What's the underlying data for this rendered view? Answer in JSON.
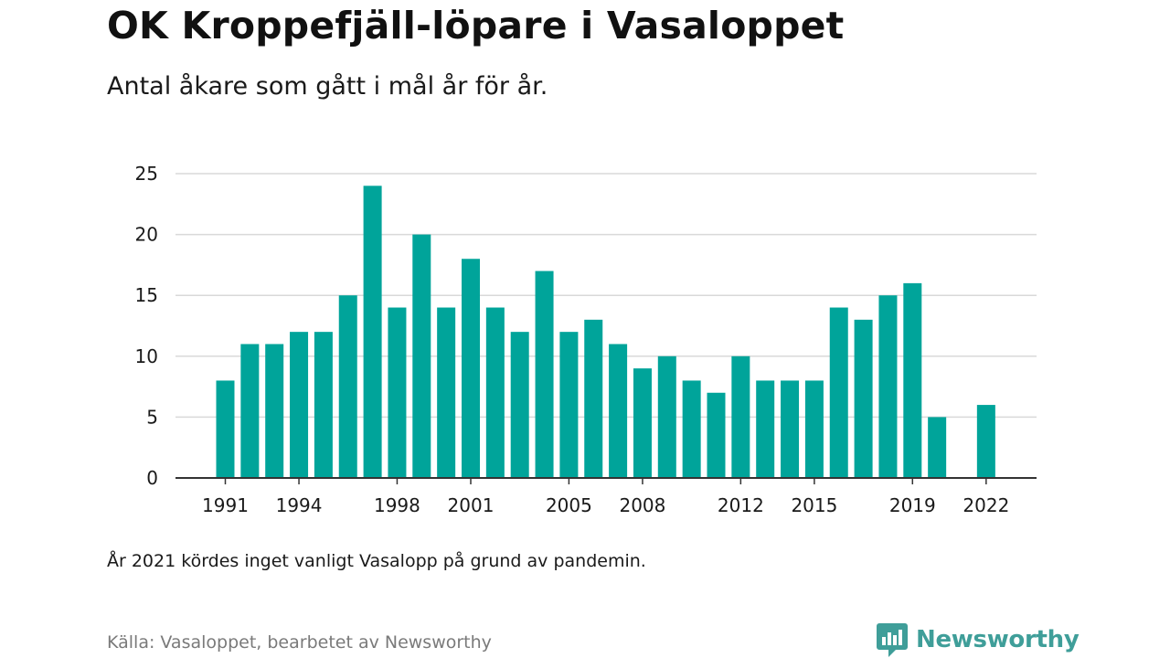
{
  "header": {
    "title": "OK Kroppefjäll-löpare i Vasaloppet",
    "subtitle": "Antal åkare som gått i mål år för år."
  },
  "note": "År 2021 kördes inget vanligt Vasalopp på grund av pandemin.",
  "source": "Källa: Vasaloppet, bearbetet av Newsworthy",
  "brand": {
    "name": "Newsworthy",
    "icon": "newsworthy-logo-icon",
    "color": "#3f9e99"
  },
  "colors": {
    "bar": "#00a49a",
    "grid": "#d9d9d9",
    "axis": "#333333",
    "text": "#1a1a1a"
  },
  "chart_data": {
    "type": "bar",
    "title": "OK Kroppefjäll-löpare i Vasaloppet",
    "subtitle": "Antal åkare som gått i mål år för år.",
    "xlabel": "",
    "ylabel": "",
    "ylim": [
      0,
      25
    ],
    "yticks": [
      0,
      5,
      10,
      15,
      20,
      25
    ],
    "xticks": [
      1991,
      1994,
      1998,
      2001,
      2005,
      2008,
      2012,
      2015,
      2019,
      2022
    ],
    "grid": true,
    "legend": "none",
    "categories": [
      1991,
      1992,
      1993,
      1994,
      1995,
      1996,
      1997,
      1998,
      1999,
      2000,
      2001,
      2002,
      2003,
      2004,
      2005,
      2006,
      2007,
      2008,
      2009,
      2010,
      2011,
      2012,
      2013,
      2014,
      2015,
      2016,
      2017,
      2018,
      2019,
      2020,
      2021,
      2022
    ],
    "values": [
      8,
      11,
      11,
      12,
      12,
      15,
      24,
      14,
      20,
      14,
      18,
      14,
      12,
      17,
      12,
      13,
      11,
      9,
      10,
      8,
      7,
      10,
      8,
      8,
      8,
      14,
      13,
      15,
      16,
      5,
      null,
      6
    ]
  }
}
